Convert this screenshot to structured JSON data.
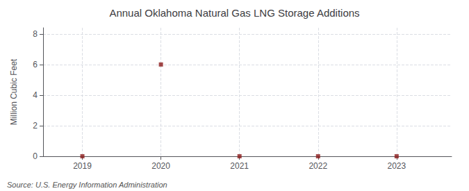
{
  "chart_data": {
    "type": "scatter",
    "title": "Annual Oklahoma Natural Gas LNG Storage Additions",
    "ylabel": "Million Cubic Feet",
    "annotations": [
      "Source: U.S. Energy Information Administration"
    ],
    "x": [
      2019,
      2020,
      2021,
      2022,
      2023
    ],
    "values": [
      0,
      6.0,
      0,
      0,
      0
    ],
    "color": "#8b1a1a",
    "marker": "square",
    "xlim": [
      2018.5,
      2023.7
    ],
    "xticks": [
      2019,
      2020,
      2021,
      2022,
      2023
    ],
    "ylim": [
      0,
      8.4
    ],
    "yticks": [
      0,
      2,
      4,
      6,
      8
    ],
    "grid": true
  }
}
